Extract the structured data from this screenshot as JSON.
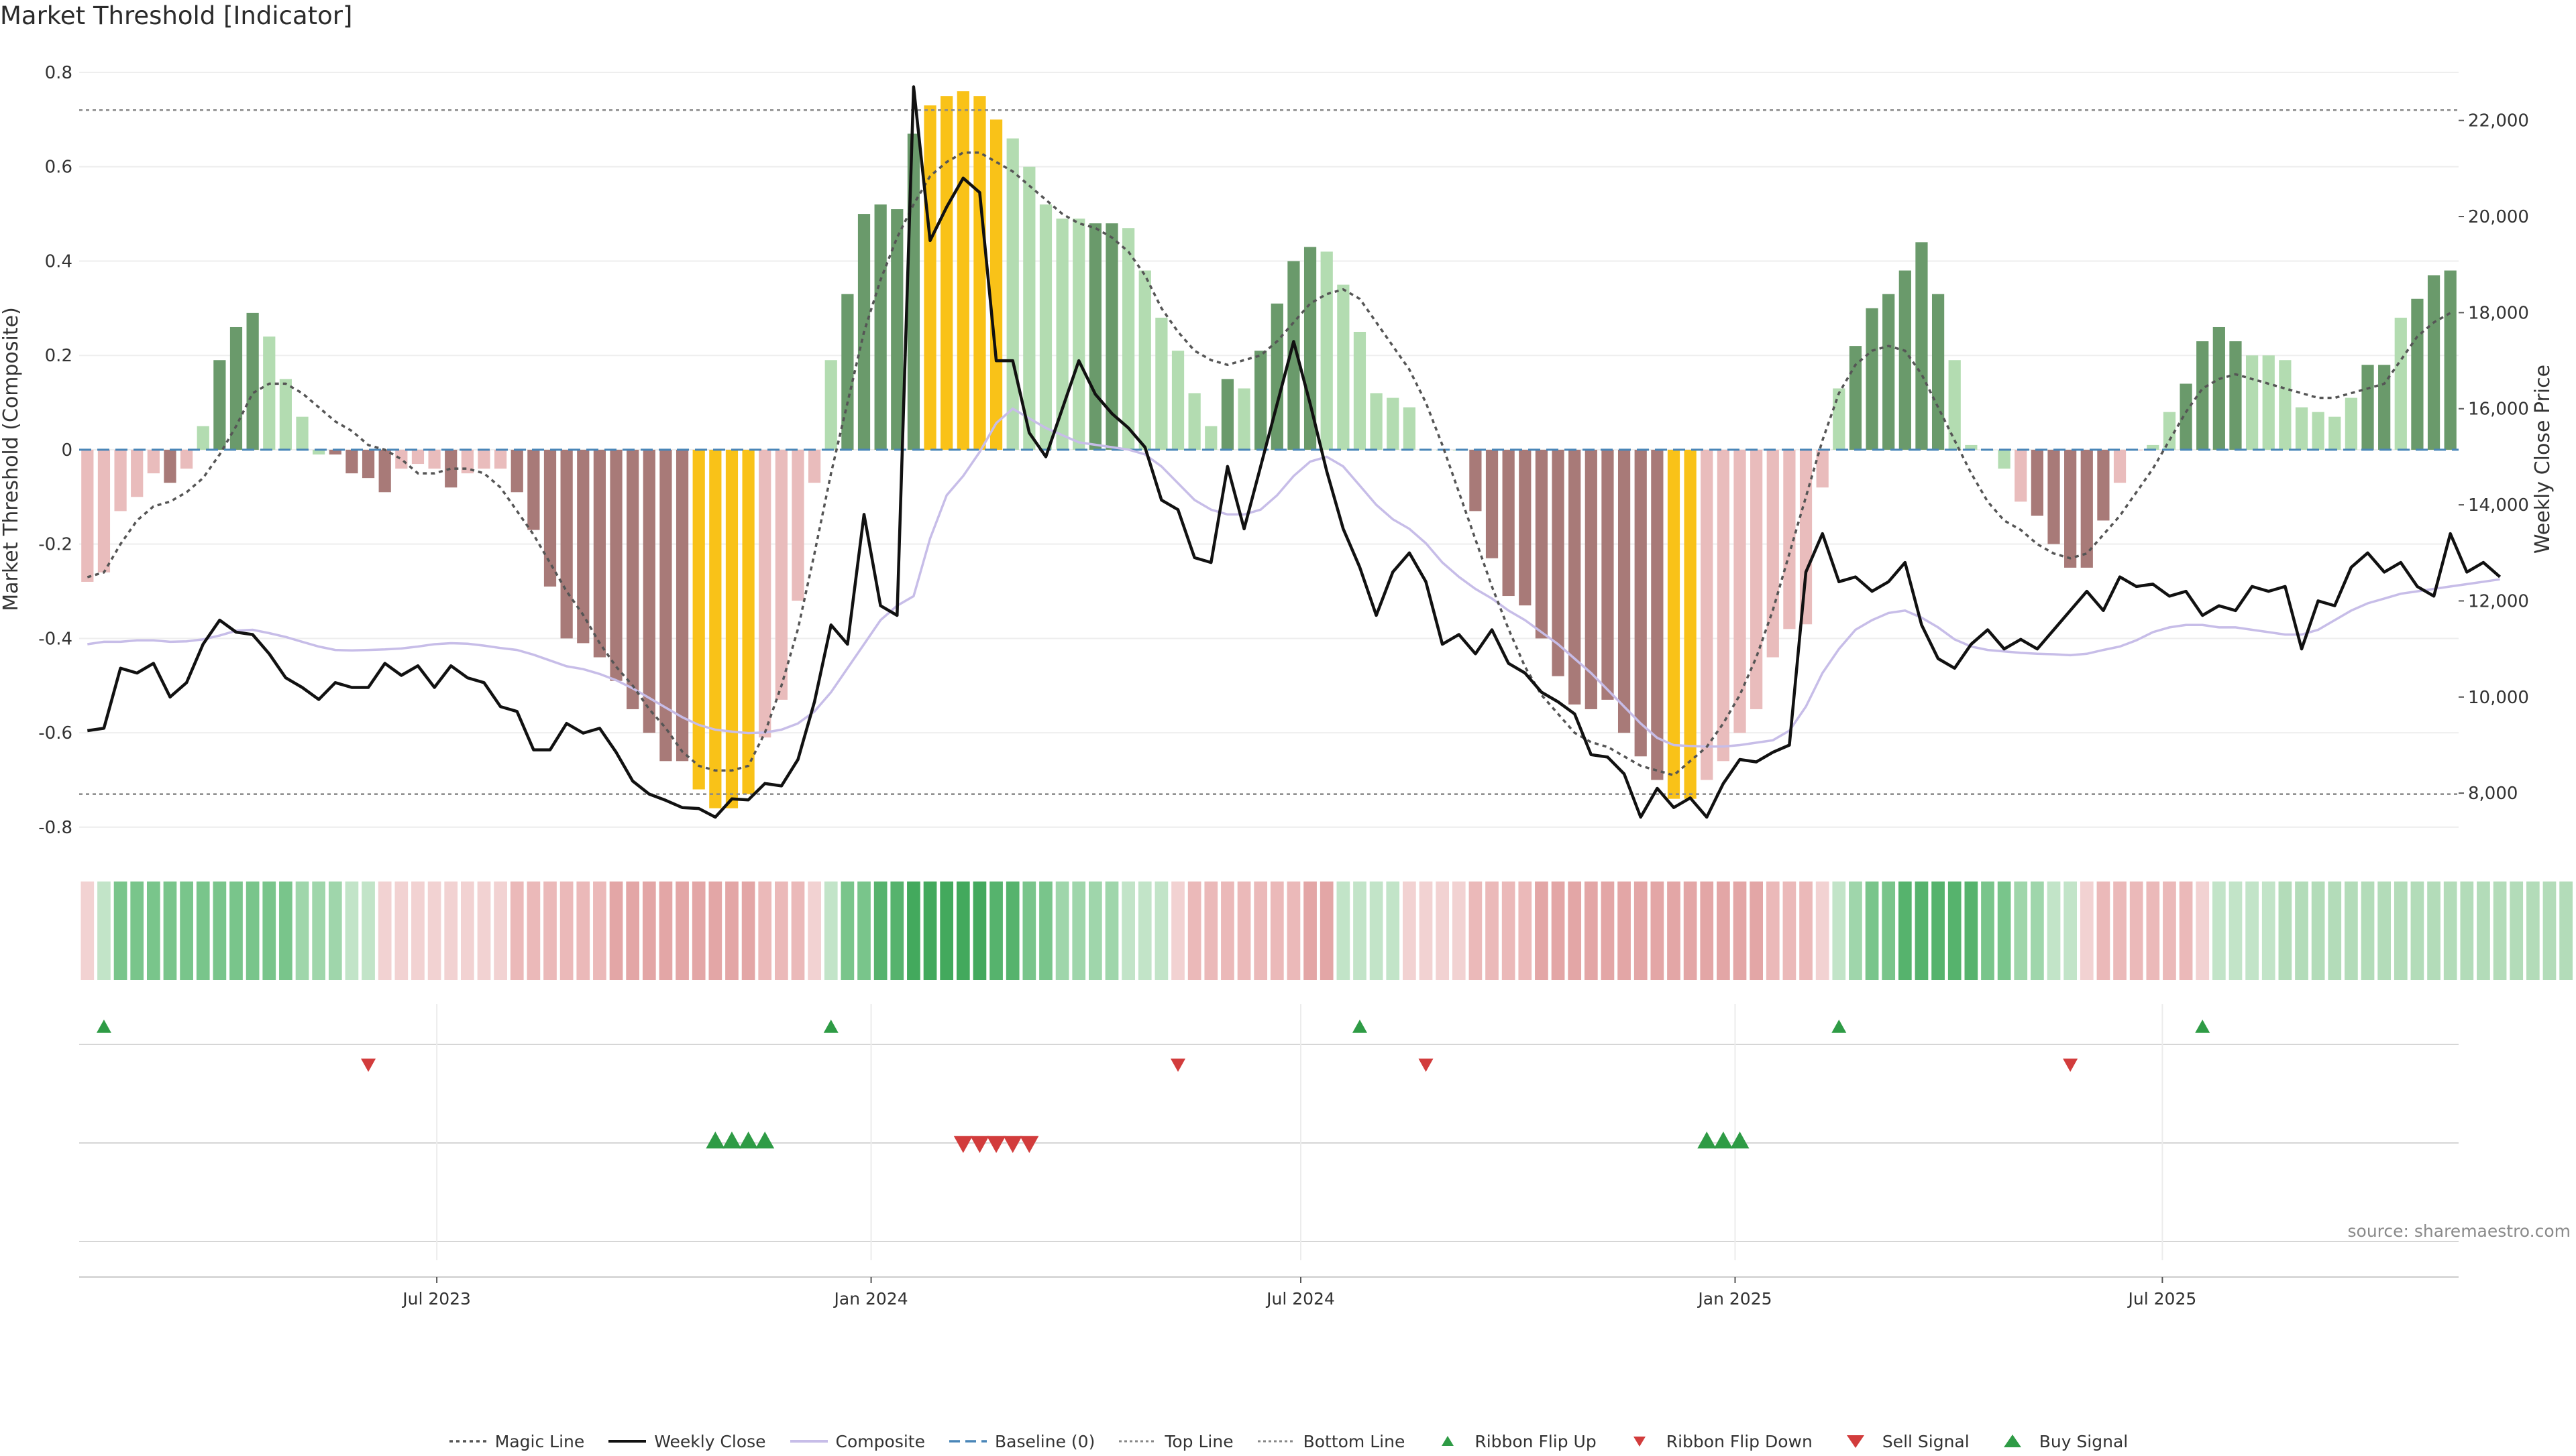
{
  "title": "Market Threshold [Indicator]",
  "source": "source: sharemaestro.com",
  "chart_data": {
    "type": "bar",
    "title": "Market Threshold [Indicator]",
    "ylabel": "Market Threshold (Composite)",
    "y2label": "Weekly Close Price",
    "ylim": [
      -0.84,
      0.8
    ],
    "y2lim": [
      6900,
      23000
    ],
    "yticks": [
      "0.8",
      "0.6",
      "0.4",
      "0.2",
      "0",
      "-0.2",
      "-0.4",
      "-0.6",
      "-0.8"
    ],
    "y2ticks": [
      "22,000",
      "20,000",
      "18,000",
      "16,000",
      "14,000",
      "12,000",
      "10,000",
      "8,000"
    ],
    "xticks": [
      "Jul 2023",
      "Jan 2024",
      "Jul 2024",
      "Jan 2025",
      "Jul 2025"
    ],
    "x_start": "2023-02-03",
    "top_line": 0.72,
    "bottom_line": -0.73,
    "bar_values": [
      -0.28,
      -0.26,
      -0.13,
      -0.1,
      -0.05,
      -0.07,
      -0.04,
      0.05,
      0.19,
      0.26,
      0.29,
      0.24,
      0.15,
      0.07,
      -0.01,
      -0.01,
      -0.05,
      -0.06,
      -0.09,
      -0.04,
      -0.03,
      -0.04,
      -0.08,
      -0.05,
      -0.04,
      -0.04,
      -0.09,
      -0.17,
      -0.29,
      -0.4,
      -0.41,
      -0.44,
      -0.49,
      -0.55,
      -0.6,
      -0.66,
      -0.66,
      -0.72,
      -0.76,
      -0.76,
      -0.73,
      -0.61,
      -0.53,
      -0.32,
      -0.07,
      0.19,
      0.33,
      0.5,
      0.52,
      0.51,
      0.67,
      0.73,
      0.75,
      0.76,
      0.75,
      0.7,
      0.66,
      0.6,
      0.52,
      0.49,
      0.49,
      0.48,
      0.48,
      0.47,
      0.38,
      0.28,
      0.21,
      0.12,
      0.05,
      0.15,
      0.13,
      0.21,
      0.31,
      0.4,
      0.43,
      0.42,
      0.35,
      0.25,
      0.12,
      0.11,
      0.09,
      0,
      0,
      0,
      -0.13,
      -0.23,
      -0.31,
      -0.33,
      -0.4,
      -0.48,
      -0.54,
      -0.55,
      -0.53,
      -0.6,
      -0.65,
      -0.7,
      -0.74,
      -0.74,
      -0.7,
      -0.66,
      -0.6,
      -0.55,
      -0.44,
      -0.38,
      -0.37,
      -0.08,
      0.13,
      0.22,
      0.3,
      0.33,
      0.38,
      0.44,
      0.33,
      0.19,
      0.01,
      0,
      -0.04,
      -0.11,
      -0.14,
      -0.2,
      -0.25,
      -0.25,
      -0.15,
      -0.07,
      0,
      0.01,
      0.08,
      0.14,
      0.23,
      0.26,
      0.23,
      0.2,
      0.2,
      0.19,
      0.09,
      0.08,
      0.07,
      0.11,
      0.18,
      0.18,
      0.28,
      0.32,
      0.37,
      0.38
    ],
    "bar_colors": [
      "#e9bcbc",
      "#e9bcbc",
      "#e9bcbc",
      "#e9bcbc",
      "#e9bcbc",
      "#a87a78",
      "#e9bcbc",
      "#b3dcb1",
      "#6a9a6b",
      "#6a9a6b",
      "#6a9a6b",
      "#b3dcb1",
      "#b3dcb1",
      "#b3dcb1",
      "#b3dcb1",
      "#a87a78",
      "#a87a78",
      "#a87a78",
      "#a87a78",
      "#e9bcbc",
      "#e9bcbc",
      "#e9bcbc",
      "#a87a78",
      "#e9bcbc",
      "#e9bcbc",
      "#e9bcbc",
      "#a87a78",
      "#a87a78",
      "#a87a78",
      "#a87a78",
      "#a87a78",
      "#a87a78",
      "#a87a78",
      "#a87a78",
      "#a87a78",
      "#a87a78",
      "#a87a78",
      "#f9c218",
      "#f9c218",
      "#f9c218",
      "#f9c218",
      "#e9bcbc",
      "#e9bcbc",
      "#e9bcbc",
      "#e9bcbc",
      "#b3dcb1",
      "#6a9a6b",
      "#6a9a6b",
      "#6a9a6b",
      "#6a9a6b",
      "#6a9a6b",
      "#f9c218",
      "#f9c218",
      "#f9c218",
      "#f9c218",
      "#f9c218",
      "#b3dcb1",
      "#b3dcb1",
      "#b3dcb1",
      "#b3dcb1",
      "#b3dcb1",
      "#6a9a6b",
      "#6a9a6b",
      "#b3dcb1",
      "#b3dcb1",
      "#b3dcb1",
      "#b3dcb1",
      "#b3dcb1",
      "#b3dcb1",
      "#6a9a6b",
      "#b3dcb1",
      "#6a9a6b",
      "#6a9a6b",
      "#6a9a6b",
      "#6a9a6b",
      "#b3dcb1",
      "#b3dcb1",
      "#b3dcb1",
      "#b3dcb1",
      "#b3dcb1",
      "#b3dcb1",
      "#b3dcb1",
      "#b3dcb1",
      "#b3dcb1",
      "#a87a78",
      "#a87a78",
      "#a87a78",
      "#a87a78",
      "#a87a78",
      "#a87a78",
      "#a87a78",
      "#a87a78",
      "#a87a78",
      "#a87a78",
      "#a87a78",
      "#a87a78",
      "#f9c218",
      "#f9c218",
      "#e9bcbc",
      "#e9bcbc",
      "#e9bcbc",
      "#e9bcbc",
      "#e9bcbc",
      "#e9bcbc",
      "#e9bcbc",
      "#e9bcbc",
      "#b3dcb1",
      "#6a9a6b",
      "#6a9a6b",
      "#6a9a6b",
      "#6a9a6b",
      "#6a9a6b",
      "#6a9a6b",
      "#b3dcb1",
      "#b3dcb1",
      "#b3dcb1",
      "#b3dcb1",
      "#e9bcbc",
      "#a87a78",
      "#a87a78",
      "#a87a78",
      "#a87a78",
      "#a87a78",
      "#e9bcbc",
      "#e9bcbc",
      "#b3dcb1",
      "#b3dcb1",
      "#6a9a6b",
      "#6a9a6b",
      "#6a9a6b",
      "#6a9a6b",
      "#b3dcb1",
      "#b3dcb1",
      "#b3dcb1",
      "#b3dcb1",
      "#b3dcb1",
      "#b3dcb1",
      "#b3dcb1",
      "#6a9a6b",
      "#6a9a6b",
      "#b3dcb1",
      "#6a9a6b",
      "#6a9a6b",
      "#6a9a6b",
      "#6a9a6b"
    ],
    "weekly_close": [
      9300,
      9350,
      10600,
      10500,
      10700,
      10000,
      10300,
      11100,
      11600,
      11350,
      11300,
      10900,
      10400,
      10200,
      9950,
      10300,
      10200,
      10200,
      10700,
      10450,
      10650,
      10200,
      10650,
      10400,
      10300,
      9800,
      9700,
      8900,
      8900,
      9450,
      9250,
      9350,
      8850,
      8250,
      7980,
      7850,
      7700,
      7680,
      7500,
      7880,
      7860,
      8200,
      8150,
      8700,
      9900,
      11500,
      11100,
      13800,
      11900,
      11700,
      22700,
      19500,
      20200,
      20800,
      20500,
      17000,
      17000,
      15500,
      15000,
      16000,
      17000,
      16300,
      15900,
      15600,
      15200,
      14100,
      13900,
      12900,
      12800,
      14800,
      13500,
      14800,
      16100,
      17400,
      16100,
      14700,
      13500,
      12700,
      11700,
      12600,
      13000,
      12400,
      11100,
      11300,
      10900,
      11400,
      10700,
      10500,
      10100,
      9900,
      9650,
      8800,
      8750,
      8400,
      7500,
      8100,
      7700,
      7900,
      7500,
      8200,
      8700,
      8650,
      8850,
      9000,
      12600,
      13400,
      12400,
      12500,
      12200,
      12400,
      12800,
      11500,
      10800,
      10600,
      11100,
      11400,
      11000,
      11200,
      11000,
      11400,
      11800,
      12200,
      11800,
      12500,
      12300,
      12350,
      12100,
      12200,
      11700,
      11900,
      11800,
      12300,
      12200,
      12300,
      11000,
      12000,
      11900,
      12700,
      13000,
      12600,
      12800,
      12300,
      12100,
      13400,
      12600,
      12800,
      12500
    ],
    "composite": [
      11100,
      11150,
      11150,
      11180,
      11180,
      11150,
      11160,
      11200,
      11280,
      11380,
      11400,
      11330,
      11250,
      11150,
      11050,
      10980,
      10970,
      10980,
      10990,
      11010,
      11050,
      11100,
      11120,
      11110,
      11070,
      11020,
      10980,
      10880,
      10760,
      10640,
      10580,
      10480,
      10350,
      10180,
      9980,
      9780,
      9580,
      9420,
      9320,
      9280,
      9250,
      9260,
      9320,
      9450,
      9700,
      10100,
      10600,
      11100,
      11600,
      11900,
      12100,
      13300,
      14200,
      14600,
      15100,
      15700,
      16000,
      15800,
      15600,
      15450,
      15300,
      15250,
      15200,
      15150,
      15050,
      14800,
      14450,
      14100,
      13900,
      13800,
      13800,
      13900,
      14200,
      14600,
      14900,
      15000,
      14800,
      14400,
      14000,
      13700,
      13500,
      13200,
      12800,
      12500,
      12250,
      12050,
      11800,
      11600,
      11350,
      11100,
      10800,
      10500,
      10150,
      9800,
      9450,
      9150,
      9000,
      8980,
      8970,
      8970,
      9000,
      9050,
      9100,
      9300,
      9800,
      10500,
      11000,
      11400,
      11600,
      11750,
      11800,
      11650,
      11450,
      11200,
      11050,
      10980,
      10950,
      10920,
      10900,
      10890,
      10870,
      10900,
      10980,
      11050,
      11180,
      11350,
      11450,
      11500,
      11500,
      11450,
      11450,
      11400,
      11350,
      11300,
      11300,
      11400,
      11600,
      11800,
      11950,
      12050,
      12150,
      12200,
      12250,
      12300,
      12350,
      12400,
      12450
    ],
    "magic_line": [
      -0.27,
      -0.26,
      -0.2,
      -0.15,
      -0.12,
      -0.11,
      -0.09,
      -0.06,
      -0.01,
      0.05,
      0.12,
      0.14,
      0.14,
      0.12,
      0.09,
      0.06,
      0.04,
      0.01,
      0,
      -0.02,
      -0.05,
      -0.05,
      -0.04,
      -0.04,
      -0.05,
      -0.08,
      -0.13,
      -0.18,
      -0.24,
      -0.3,
      -0.35,
      -0.41,
      -0.46,
      -0.5,
      -0.55,
      -0.59,
      -0.64,
      -0.67,
      -0.68,
      -0.68,
      -0.67,
      -0.6,
      -0.5,
      -0.38,
      -0.22,
      -0.05,
      0.1,
      0.25,
      0.36,
      0.45,
      0.52,
      0.58,
      0.61,
      0.63,
      0.63,
      0.61,
      0.59,
      0.56,
      0.53,
      0.5,
      0.48,
      0.47,
      0.45,
      0.42,
      0.37,
      0.3,
      0.25,
      0.21,
      0.19,
      0.18,
      0.19,
      0.2,
      0.23,
      0.27,
      0.31,
      0.33,
      0.34,
      0.32,
      0.27,
      0.22,
      0.17,
      0.1,
      0.01,
      -0.09,
      -0.19,
      -0.29,
      -0.38,
      -0.46,
      -0.52,
      -0.56,
      -0.6,
      -0.62,
      -0.63,
      -0.65,
      -0.67,
      -0.68,
      -0.69,
      -0.66,
      -0.63,
      -0.58,
      -0.52,
      -0.44,
      -0.34,
      -0.22,
      -0.1,
      0.02,
      0.12,
      0.18,
      0.21,
      0.22,
      0.21,
      0.16,
      0.09,
      0.02,
      -0.05,
      -0.11,
      -0.15,
      -0.17,
      -0.2,
      -0.22,
      -0.23,
      -0.22,
      -0.18,
      -0.14,
      -0.09,
      -0.04,
      0.02,
      0.08,
      0.13,
      0.15,
      0.16,
      0.15,
      0.14,
      0.13,
      0.12,
      0.11,
      0.11,
      0.12,
      0.13,
      0.14,
      0.19,
      0.24,
      0.27,
      0.29
    ],
    "ribbon_colors": [
      "#f2d2d2",
      "#c2e4c8",
      "#79c58b",
      "#79c58b",
      "#79c58b",
      "#79c58b",
      "#79c58b",
      "#79c58b",
      "#79c58b",
      "#79c58b",
      "#79c58b",
      "#79c58b",
      "#79c58b",
      "#9fd6ab",
      "#9fd6ab",
      "#9fd6ab",
      "#c2e4c8",
      "#c2e4c8",
      "#f2d2d2",
      "#f2d2d2",
      "#f2d2d2",
      "#f2d2d2",
      "#f2d2d2",
      "#f2d2d2",
      "#f2d2d2",
      "#f2d2d2",
      "#ebb9b9",
      "#ebb9b9",
      "#ebb9b9",
      "#ebb9b9",
      "#ebb9b9",
      "#ebb9b9",
      "#e3a6a6",
      "#e3a6a6",
      "#e3a6a6",
      "#e3a6a6",
      "#e3a6a6",
      "#e3a6a6",
      "#e3a6a6",
      "#e3a6a6",
      "#e3a6a6",
      "#ebb9b9",
      "#ebb9b9",
      "#ebb9b9",
      "#f2d2d2",
      "#c2e4c8",
      "#79c58b",
      "#79c58b",
      "#56b36d",
      "#56b36d",
      "#43a95d",
      "#43a95d",
      "#43a95d",
      "#43a95d",
      "#43a95d",
      "#56b36d",
      "#56b36d",
      "#79c58b",
      "#79c58b",
      "#9fd6ab",
      "#9fd6ab",
      "#9fd6ab",
      "#9fd6ab",
      "#c2e4c8",
      "#c2e4c8",
      "#c2e4c8",
      "#f2d2d2",
      "#ebb9b9",
      "#ebb9b9",
      "#ebb9b9",
      "#ebb9b9",
      "#ebb9b9",
      "#ebb9b9",
      "#ebb9b9",
      "#e3a6a6",
      "#e3a6a6",
      "#c2e4c8",
      "#c2e4c8",
      "#c2e4c8",
      "#c2e4c8",
      "#f2d2d2",
      "#f2d2d2",
      "#f2d2d2",
      "#f2d2d2",
      "#ebb9b9",
      "#ebb9b9",
      "#ebb9b9",
      "#ebb9b9",
      "#e3a6a6",
      "#e3a6a6",
      "#e3a6a6",
      "#e3a6a6",
      "#e3a6a6",
      "#e3a6a6",
      "#e3a6a6",
      "#e3a6a6",
      "#e3a6a6",
      "#e3a6a6",
      "#e3a6a6",
      "#e3a6a6",
      "#e3a6a6",
      "#e3a6a6",
      "#ebb9b9",
      "#ebb9b9",
      "#ebb9b9",
      "#f2d2d2",
      "#c2e4c8",
      "#9fd6ab",
      "#79c58b",
      "#79c58b",
      "#56b36d",
      "#56b36d",
      "#56b36d",
      "#56b36d",
      "#56b36d",
      "#79c58b",
      "#79c58b",
      "#9fd6ab",
      "#9fd6ab",
      "#c2e4c8",
      "#c2e4c8",
      "#f2d2d2",
      "#ebb9b9",
      "#ebb9b9",
      "#ebb9b9",
      "#ebb9b9",
      "#ebb9b9",
      "#ebb9b9",
      "#f2d2d2",
      "#c2e4c8",
      "#c2e4c8",
      "#c2e4c8",
      "#c2e4c8",
      "#b3dcb9",
      "#b3dcb9",
      "#b3dcb9",
      "#b3dcb9",
      "#b3dcb9",
      "#b3dcb9",
      "#b3dcb9",
      "#b3dcb9",
      "#b3dcb9",
      "#b3dcb9",
      "#b3dcb9",
      "#b3dcb9",
      "#b3dcb9",
      "#b3dcb9",
      "#b3dcb9",
      "#b3dcb9",
      "#b3dcb9",
      "#b3dcb9"
    ],
    "ribbon_flip_up": [
      1,
      45,
      77,
      106,
      128
    ],
    "ribbon_flip_down": [
      17,
      66,
      81,
      120
    ],
    "buy_signals": [
      38,
      39,
      40,
      41,
      98,
      99,
      100
    ],
    "sell_signals": [
      53,
      54,
      55,
      56,
      57
    ],
    "colors": {
      "magic_line": "#555555",
      "weekly_close": "#111111",
      "composite": "#c7bde8",
      "baseline": "#4a86b8",
      "threshold": "#888888",
      "up_marker": "#2e9b45",
      "down_marker": "#d23c3c"
    }
  },
  "legend": [
    {
      "label": "Magic Line",
      "kind": "dotted-dark"
    },
    {
      "label": "Weekly Close",
      "kind": "solid-black"
    },
    {
      "label": "Composite",
      "kind": "solid-lavender"
    },
    {
      "label": "Baseline (0)",
      "kind": "dashed-blue"
    },
    {
      "label": "Top Line",
      "kind": "dotted-grey"
    },
    {
      "label": "Bottom Line",
      "kind": "dotted-grey"
    },
    {
      "label": "Ribbon Flip Up",
      "kind": "triangle-up-small"
    },
    {
      "label": "Ribbon Flip Down",
      "kind": "triangle-down-small"
    },
    {
      "label": "Sell Signal",
      "kind": "triangle-down-large"
    },
    {
      "label": "Buy Signal",
      "kind": "triangle-up-large"
    }
  ]
}
